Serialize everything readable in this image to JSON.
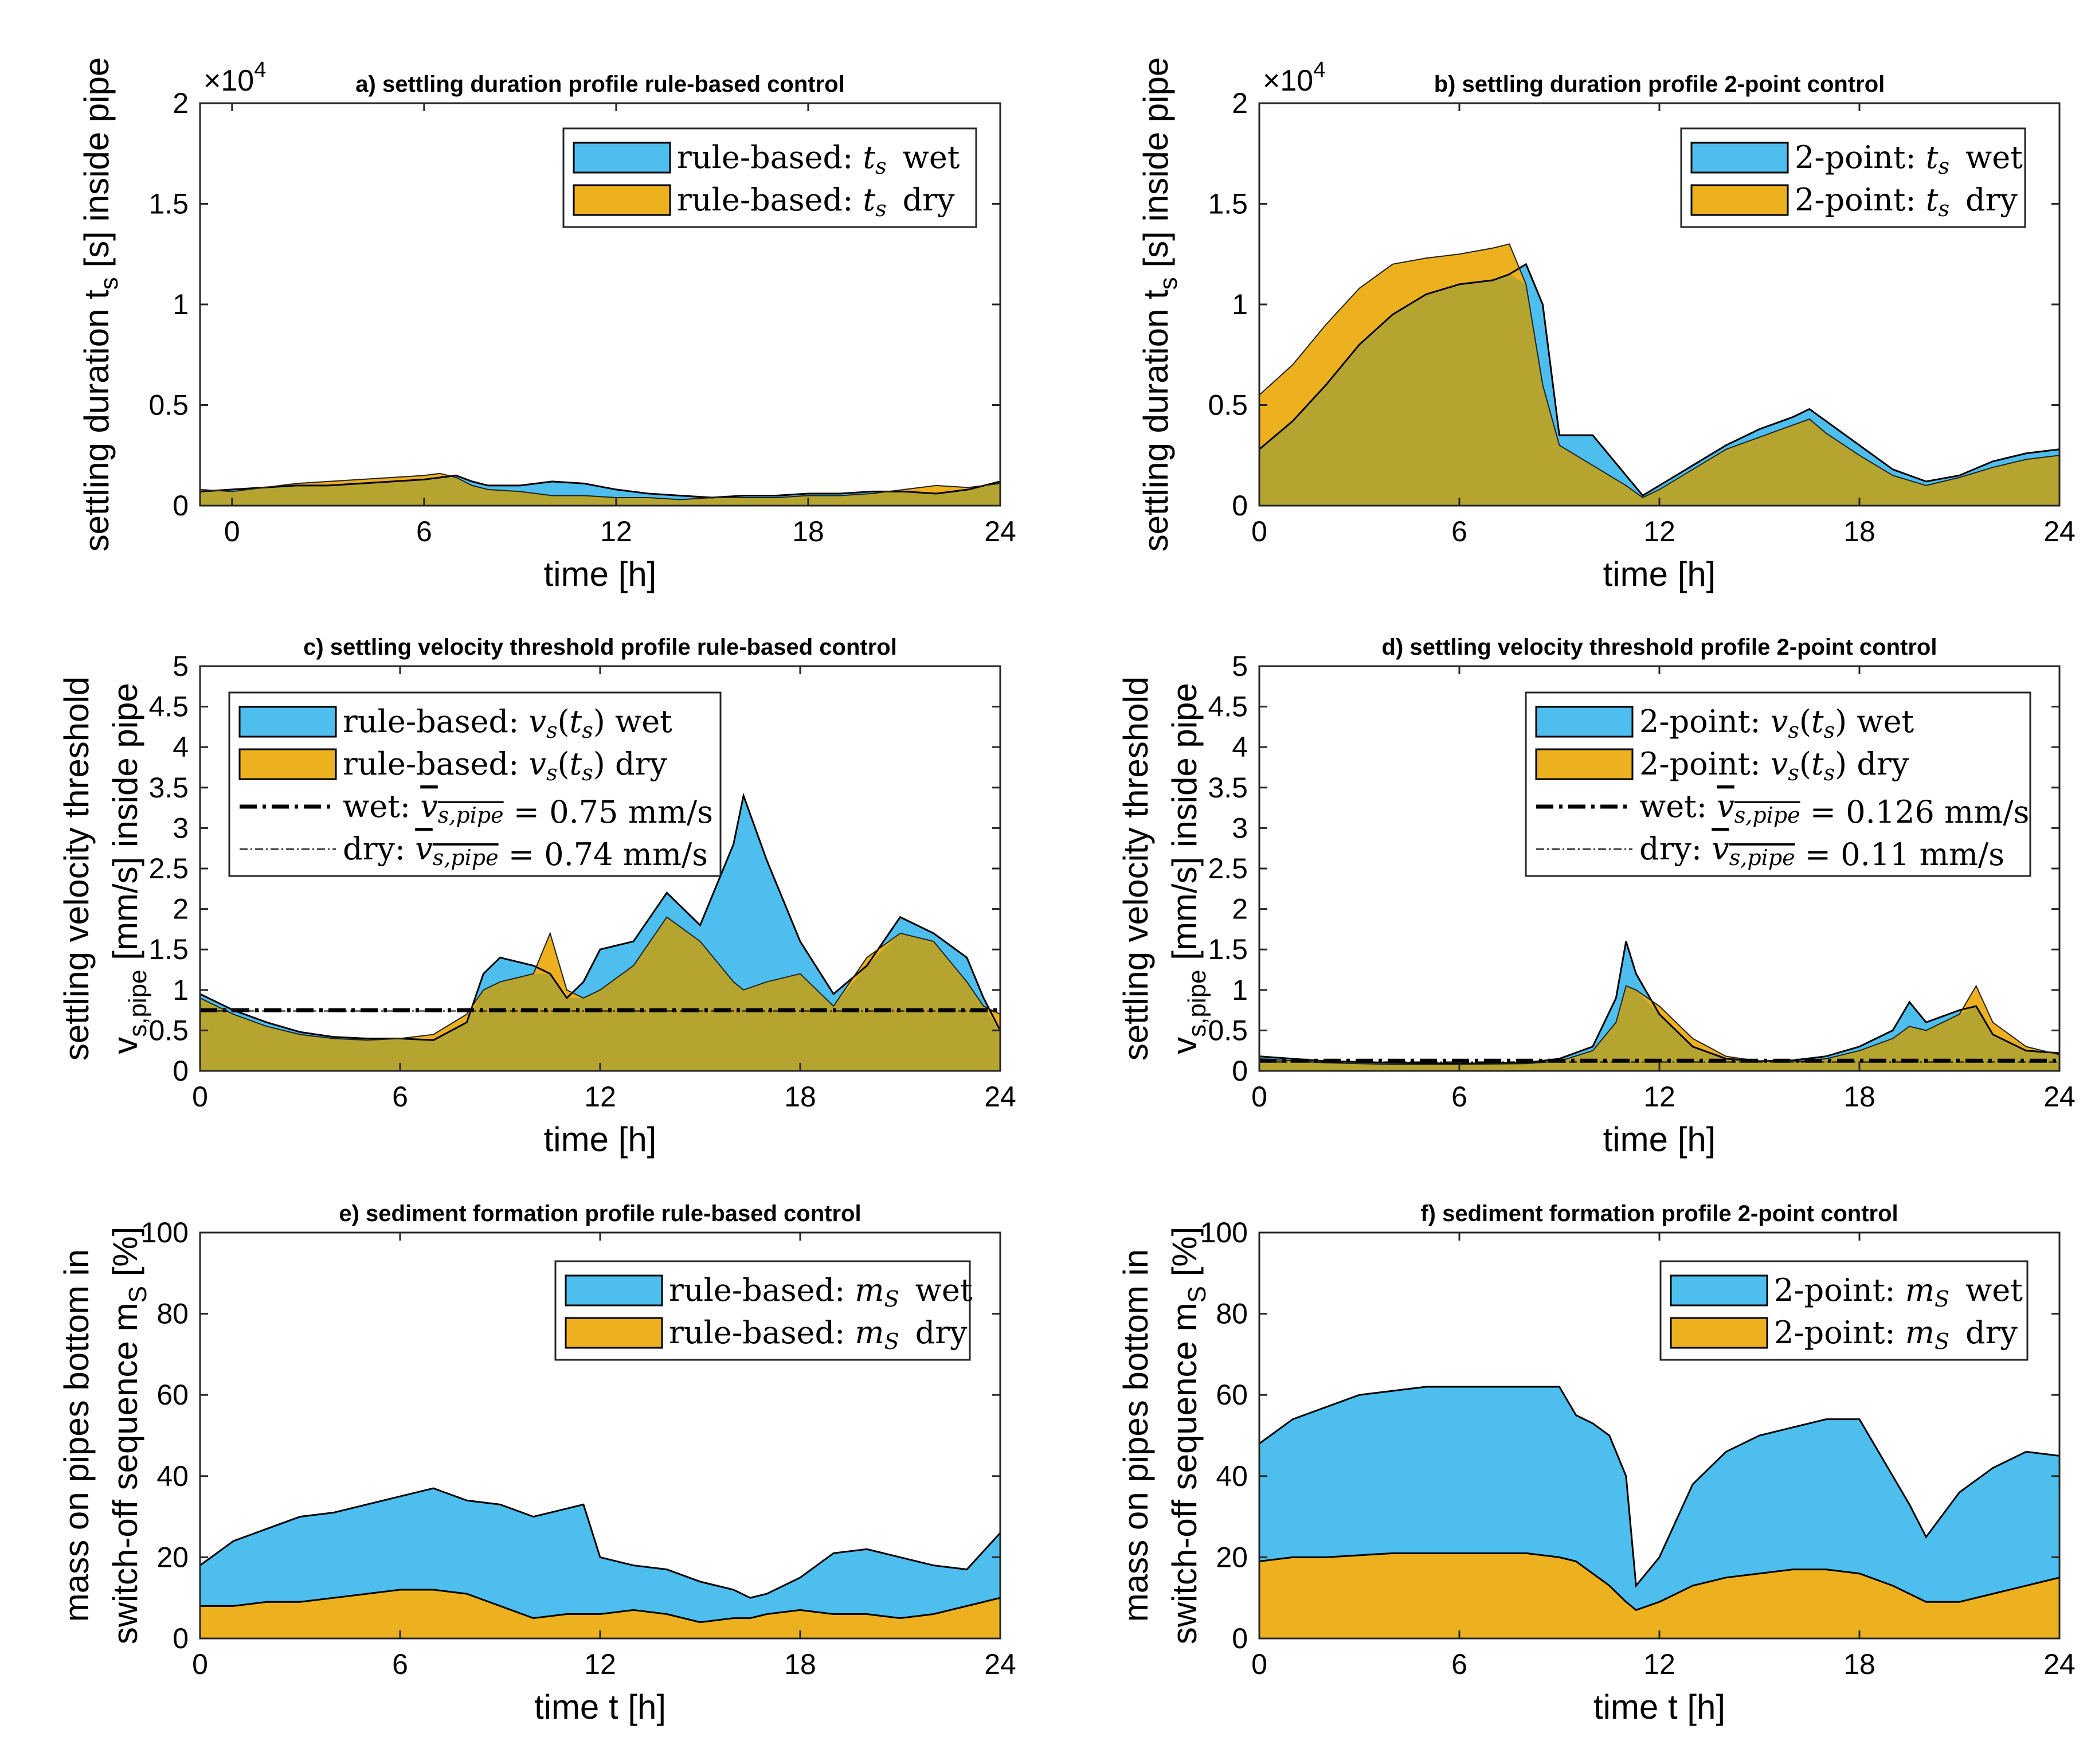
{
  "figure": {
    "colors": {
      "wet": "#4DBEEE",
      "dry": "#EDB120",
      "overlap": "#B5A430",
      "line": "#000000"
    }
  },
  "chart_data": [
    {
      "id": "a",
      "type": "area",
      "title": "a) settling duration profile rule-based control",
      "xlabel": "time [h]",
      "ylabel": "settling duration t_s [s] inside pipe",
      "xlim": [
        -1,
        24
      ],
      "ylim": [
        0,
        2
      ],
      "xticks": [
        "0",
        "6",
        "12",
        "18",
        "24"
      ],
      "yticks": [
        "0",
        "0.5",
        "1",
        "1.5",
        "2"
      ],
      "exponent": "×10^4",
      "legend_position": "top-right",
      "x": [
        -1,
        0,
        1,
        2,
        3,
        4,
        5,
        6,
        6.5,
        7,
        7.5,
        8,
        9,
        10,
        11,
        12,
        13,
        14,
        15,
        16,
        17,
        18,
        19,
        20,
        21,
        22,
        23,
        24
      ],
      "series": [
        {
          "name": "rule-based: t_s wet",
          "values": [
            0.07,
            0.08,
            0.09,
            0.1,
            0.1,
            0.11,
            0.12,
            0.13,
            0.14,
            0.15,
            0.12,
            0.1,
            0.1,
            0.12,
            0.11,
            0.08,
            0.06,
            0.05,
            0.04,
            0.05,
            0.05,
            0.06,
            0.06,
            0.07,
            0.07,
            0.06,
            0.08,
            0.12
          ]
        },
        {
          "name": "rule-based: t_s dry",
          "values": [
            0.08,
            0.07,
            0.09,
            0.11,
            0.12,
            0.13,
            0.14,
            0.15,
            0.16,
            0.14,
            0.1,
            0.08,
            0.07,
            0.05,
            0.05,
            0.04,
            0.04,
            0.03,
            0.04,
            0.04,
            0.04,
            0.05,
            0.05,
            0.06,
            0.08,
            0.1,
            0.09,
            0.11
          ]
        }
      ]
    },
    {
      "id": "b",
      "type": "area",
      "title": "b) settling duration profile 2-point control",
      "xlabel": "time [h]",
      "ylabel": "settling duration t_s [s] inside pipe",
      "xlim": [
        0,
        24
      ],
      "ylim": [
        0,
        2
      ],
      "xticks": [
        "0",
        "6",
        "12",
        "18",
        "24"
      ],
      "yticks": [
        "0",
        "0.5",
        "1",
        "1.5",
        "2"
      ],
      "exponent": "×10^4",
      "legend_position": "top-right",
      "x": [
        0,
        1,
        2,
        3,
        4,
        5,
        6,
        7,
        7.5,
        8,
        8.5,
        9,
        10,
        11,
        11.5,
        12,
        13,
        14,
        15,
        16,
        16.5,
        17,
        18,
        19,
        20,
        21,
        22,
        23,
        24
      ],
      "series": [
        {
          "name": "2-point: t_s wet",
          "values": [
            0.28,
            0.42,
            0.6,
            0.8,
            0.95,
            1.05,
            1.1,
            1.12,
            1.15,
            1.2,
            1.0,
            0.35,
            0.35,
            0.15,
            0.05,
            0.1,
            0.2,
            0.3,
            0.38,
            0.44,
            0.48,
            0.42,
            0.3,
            0.18,
            0.12,
            0.15,
            0.22,
            0.26,
            0.28
          ]
        },
        {
          "name": "2-point: t_s dry",
          "values": [
            0.55,
            0.7,
            0.9,
            1.08,
            1.2,
            1.23,
            1.25,
            1.28,
            1.3,
            1.1,
            0.6,
            0.3,
            0.2,
            0.1,
            0.04,
            0.08,
            0.18,
            0.28,
            0.34,
            0.4,
            0.43,
            0.36,
            0.25,
            0.15,
            0.1,
            0.14,
            0.19,
            0.23,
            0.25
          ]
        }
      ]
    },
    {
      "id": "c",
      "type": "area",
      "title": "c) settling velocity threshold profile rule-based control",
      "xlabel": "time [h]",
      "ylabel": "settling velocity threshold",
      "ylabel2": "v_s,pipe [mm/s] inside pipe",
      "xlim": [
        0,
        24
      ],
      "ylim": [
        0,
        5
      ],
      "xticks": [
        "0",
        "6",
        "12",
        "18",
        "24"
      ],
      "yticks": [
        "0",
        "0.5",
        "1",
        "1.5",
        "2",
        "2.5",
        "3",
        "3.5",
        "4",
        "4.5",
        "5"
      ],
      "legend_position": "top-left",
      "x": [
        0,
        1,
        2,
        3,
        4,
        5,
        6,
        7,
        8,
        8.5,
        9,
        10,
        10.5,
        11,
        11.5,
        12,
        13,
        14,
        15,
        16,
        16.3,
        17,
        18,
        19,
        20,
        21,
        22,
        23,
        23.5,
        24
      ],
      "series": [
        {
          "name": "rule-based: v_s wet",
          "values": [
            0.95,
            0.75,
            0.6,
            0.48,
            0.42,
            0.4,
            0.4,
            0.38,
            0.6,
            1.2,
            1.4,
            1.3,
            1.2,
            0.9,
            1.1,
            1.5,
            1.6,
            2.2,
            1.8,
            2.8,
            3.4,
            2.6,
            1.6,
            0.95,
            1.3,
            1.9,
            1.7,
            1.4,
            0.9,
            0.5
          ]
        },
        {
          "name": "rule-based: v_s dry",
          "values": [
            0.9,
            0.7,
            0.55,
            0.45,
            0.4,
            0.38,
            0.4,
            0.45,
            0.7,
            1.0,
            1.1,
            1.2,
            1.7,
            1.0,
            0.9,
            1.0,
            1.3,
            1.9,
            1.6,
            1.1,
            1.0,
            1.1,
            1.2,
            0.8,
            1.4,
            1.7,
            1.6,
            1.1,
            0.8,
            0.7
          ]
        },
        {
          "name": "wet mean",
          "value": 0.75,
          "label": "wet: v_s,pipe = 0.75 mm/s"
        },
        {
          "name": "dry mean",
          "value": 0.74,
          "label": "dry: v_s,pipe = 0.74 mm/s"
        }
      ]
    },
    {
      "id": "d",
      "type": "area",
      "title": "d) settling velocity threshold profile 2-point control",
      "xlabel": "time [h]",
      "ylabel": "settling velocity threshold",
      "ylabel2": "v_s,pipe [mm/s] inside pipe",
      "xlim": [
        0,
        24
      ],
      "ylim": [
        0,
        5
      ],
      "xticks": [
        "0",
        "6",
        "12",
        "18",
        "24"
      ],
      "yticks": [
        "0",
        "0.5",
        "1",
        "1.5",
        "2",
        "2.5",
        "3",
        "3.5",
        "4",
        "4.5",
        "5"
      ],
      "legend_position": "top-right",
      "x": [
        0,
        2,
        4,
        6,
        8,
        9,
        10,
        10.7,
        11,
        11.3,
        12,
        13,
        14,
        15,
        16,
        17,
        18,
        19,
        19.5,
        20,
        21,
        21.5,
        22,
        23,
        24
      ],
      "series": [
        {
          "name": "2-point: v_s wet",
          "values": [
            0.18,
            0.12,
            0.1,
            0.09,
            0.1,
            0.15,
            0.3,
            0.9,
            1.6,
            1.2,
            0.7,
            0.3,
            0.15,
            0.12,
            0.13,
            0.18,
            0.3,
            0.5,
            0.85,
            0.6,
            0.75,
            0.8,
            0.45,
            0.25,
            0.22
          ]
        },
        {
          "name": "2-point: v_s dry",
          "values": [
            0.15,
            0.1,
            0.08,
            0.08,
            0.09,
            0.12,
            0.25,
            0.6,
            1.05,
            1.0,
            0.8,
            0.4,
            0.18,
            0.12,
            0.11,
            0.15,
            0.25,
            0.4,
            0.55,
            0.5,
            0.7,
            1.05,
            0.6,
            0.3,
            0.2
          ]
        },
        {
          "name": "wet mean",
          "value": 0.126,
          "label": "wet: v_s,pipe = 0.126 mm/s"
        },
        {
          "name": "dry mean",
          "value": 0.11,
          "label": "dry: v_s,pipe = 0.11 mm/s"
        }
      ]
    },
    {
      "id": "e",
      "type": "area",
      "title": "e) sediment formation profile rule-based control",
      "xlabel": "time t [h]",
      "ylabel": "mass on pipes bottom in",
      "ylabel2": "switch-off sequence m_S [%]",
      "xlim": [
        0,
        24
      ],
      "ylim": [
        0,
        100
      ],
      "xticks": [
        "0",
        "6",
        "12",
        "18",
        "24"
      ],
      "yticks": [
        "0",
        "20",
        "40",
        "60",
        "80",
        "100"
      ],
      "legend_position": "top-right",
      "x": [
        0,
        1,
        2,
        3,
        4,
        5,
        6,
        7,
        8,
        9,
        10,
        11,
        11.5,
        12,
        13,
        14,
        15,
        16,
        16.5,
        17,
        18,
        19,
        20,
        21,
        22,
        23,
        24
      ],
      "series": [
        {
          "name": "rule-based: m_S wet",
          "values": [
            18,
            24,
            27,
            30,
            31,
            33,
            35,
            37,
            34,
            33,
            30,
            32,
            33,
            20,
            18,
            17,
            14,
            12,
            10,
            11,
            15,
            21,
            22,
            20,
            18,
            17,
            26
          ]
        },
        {
          "name": "rule-based: m_S dry",
          "values": [
            8,
            8,
            9,
            9,
            10,
            11,
            12,
            12,
            11,
            8,
            5,
            6,
            6,
            6,
            7,
            6,
            4,
            5,
            5,
            6,
            7,
            6,
            6,
            5,
            6,
            8,
            10
          ]
        }
      ]
    },
    {
      "id": "f",
      "type": "area",
      "title": "f) sediment formation profile 2-point control",
      "xlabel": "time t [h]",
      "ylabel": "mass on pipes bottom in",
      "ylabel2": "switch-off sequence m_S [%]",
      "xlim": [
        0,
        24
      ],
      "ylim": [
        0,
        100
      ],
      "xticks": [
        "0",
        "6",
        "12",
        "18",
        "24"
      ],
      "yticks": [
        "0",
        "20",
        "40",
        "60",
        "80",
        "100"
      ],
      "legend_position": "top-right",
      "x": [
        0,
        1,
        2,
        3,
        4,
        5,
        6,
        7,
        8,
        9,
        9.5,
        10,
        10.5,
        11,
        11.3,
        12,
        13,
        14,
        15,
        16,
        17,
        18,
        19,
        19.5,
        20,
        21,
        22,
        23,
        24
      ],
      "series": [
        {
          "name": "2-point: m_S wet",
          "values": [
            48,
            54,
            57,
            60,
            61,
            62,
            62,
            62,
            62,
            62,
            55,
            53,
            50,
            40,
            13,
            20,
            38,
            46,
            50,
            52,
            54,
            54,
            40,
            33,
            25,
            36,
            42,
            46,
            45
          ]
        },
        {
          "name": "2-point: m_S dry",
          "values": [
            19,
            20,
            20,
            20.5,
            21,
            21,
            21,
            21,
            21,
            20,
            19,
            16,
            13,
            9,
            7,
            9,
            13,
            15,
            16,
            17,
            17,
            16,
            13,
            11,
            9,
            9,
            11,
            13,
            15
          ]
        }
      ]
    }
  ],
  "legends": {
    "a": [
      "rule-based: ",
      " wet",
      "rule-based: ",
      " dry"
    ],
    "b": [
      "2-point: ",
      " wet",
      "2-point: ",
      " dry"
    ],
    "c": [
      "rule-based: ",
      " wet",
      "rule-based: ",
      " dry",
      "wet: ",
      " = 0.75 mm/s",
      "dry: ",
      " = 0.74 mm/s"
    ],
    "d": [
      "2-point: ",
      " wet",
      "2-point: ",
      " dry",
      "wet: ",
      " = 0.126 mm/s",
      "dry: ",
      " = 0.11 mm/s"
    ],
    "e": [
      "rule-based: ",
      " wet",
      "rule-based: ",
      " dry"
    ],
    "f": [
      "2-point: ",
      " wet",
      "2-point: ",
      " dry"
    ]
  }
}
